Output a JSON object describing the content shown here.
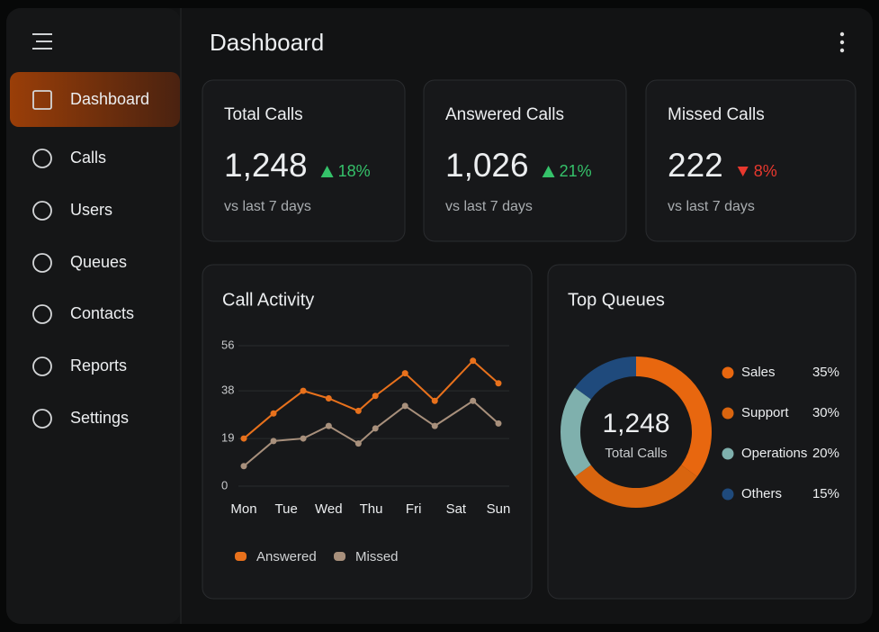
{
  "header": {
    "title": "Dashboard"
  },
  "sidebar": {
    "items": [
      "Dashboard",
      "Calls",
      "Users",
      "Queues",
      "Contacts",
      "Reports",
      "Settings"
    ]
  },
  "cards": [
    {
      "title": "Total Calls",
      "value": "1,248",
      "change": "18%",
      "trend": "up",
      "caption": "vs last 7 days"
    },
    {
      "title": "Answered Calls",
      "value": "1,026",
      "change": "21%",
      "trend": "up",
      "caption": "vs last 7 days"
    },
    {
      "title": "Missed Calls",
      "value": "222",
      "change": "8%",
      "trend": "down",
      "caption": "vs last 7 days"
    }
  ],
  "chart_data": [
    {
      "type": "line",
      "title": "Call Activity",
      "x": [
        0,
        0.7,
        1.4,
        2,
        2.7,
        3.1,
        3.8,
        4.5,
        5.4,
        6
      ],
      "xlim": [
        0,
        6
      ],
      "xticks": [
        {
          "value": 0,
          "label": "Mon"
        },
        {
          "value": 1,
          "label": "Tue"
        },
        {
          "value": 2,
          "label": "Wed"
        },
        {
          "value": 3,
          "label": "Thu"
        },
        {
          "value": 4,
          "label": "Fri"
        },
        {
          "value": 5,
          "label": "Sat"
        },
        {
          "value": 6,
          "label": "Sun"
        }
      ],
      "ylim": [
        0,
        56
      ],
      "yticks": [
        0,
        19,
        38,
        56
      ],
      "grid": true,
      "series": [
        {
          "name": "Answered",
          "color": "#e8711c",
          "values": [
            19,
            29,
            38,
            35,
            30,
            36,
            45,
            34,
            50,
            41
          ]
        },
        {
          "name": "Missed",
          "color": "#a8907c",
          "values": [
            8,
            18,
            19,
            24,
            17,
            23,
            32,
            24,
            34,
            25
          ]
        }
      ]
    },
    {
      "type": "donut",
      "title": "Top Queues",
      "center_value": "1,248",
      "center_label": "Total Calls",
      "categories": [
        "Sales",
        "Support",
        "Operations",
        "Others"
      ],
      "values": [
        35,
        30,
        20,
        15
      ],
      "value_labels": [
        "35%",
        "30%",
        "20%",
        "15%"
      ],
      "colors": [
        "#e8670f",
        "#d9650f",
        "#7fb0ad",
        "#1f4a7c"
      ]
    }
  ]
}
